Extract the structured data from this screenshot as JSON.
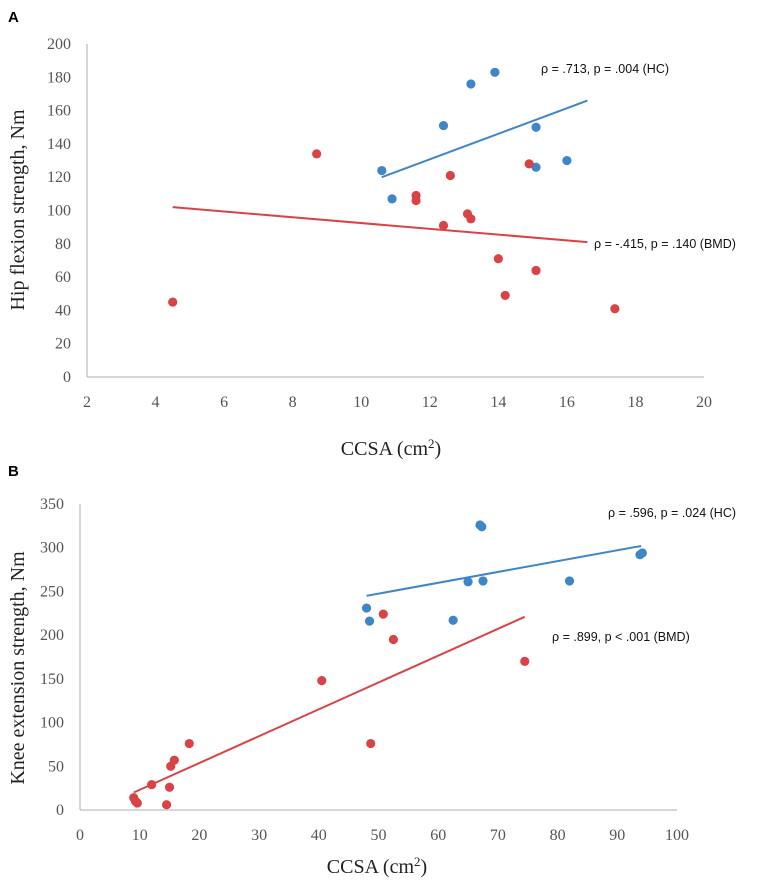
{
  "chart_data": [
    {
      "panel": "A",
      "type": "scatter",
      "xlabel": "CCSA (cm",
      "xlabel_sup": "2",
      "xlabel_end": ")",
      "ylabel": "Hip flexion strength, Nm",
      "xlim": [
        2,
        20
      ],
      "ylim": [
        0,
        200
      ],
      "xticks": [
        "2",
        "4",
        "6",
        "8",
        "10",
        "12",
        "14",
        "16",
        "18",
        "20"
      ],
      "yticks": [
        "0",
        "20",
        "40",
        "60",
        "80",
        "100",
        "120",
        "140",
        "160",
        "180",
        "200"
      ],
      "colors": {
        "HC": "#3e86c7",
        "BMD": "#d94345"
      },
      "series": [
        {
          "name": "HC",
          "color": "#3e86c7",
          "points": [
            [
              10.6,
              124
            ],
            [
              10.9,
              107
            ],
            [
              12.4,
              151
            ],
            [
              13.2,
              176
            ],
            [
              13.9,
              183
            ],
            [
              15.1,
              150
            ],
            [
              15.1,
              126
            ],
            [
              16.0,
              130
            ]
          ],
          "trendline": [
            [
              10.6,
              120
            ],
            [
              16.6,
              166
            ]
          ],
          "annotation": "ρ = .713, p = .004 (HC)"
        },
        {
          "name": "BMD",
          "color": "#d94345",
          "points": [
            [
              4.5,
              45
            ],
            [
              8.7,
              134
            ],
            [
              11.6,
              109
            ],
            [
              11.6,
              106
            ],
            [
              12.4,
              91
            ],
            [
              12.6,
              121
            ],
            [
              13.1,
              98
            ],
            [
              13.2,
              95
            ],
            [
              14.0,
              71
            ],
            [
              14.2,
              49
            ],
            [
              14.9,
              128
            ],
            [
              15.1,
              64
            ],
            [
              17.4,
              41
            ]
          ],
          "trendline": [
            [
              4.5,
              102
            ],
            [
              16.6,
              81
            ]
          ],
          "annotation": "ρ = -.415, p = .140 (BMD)"
        }
      ]
    },
    {
      "panel": "B",
      "type": "scatter",
      "xlabel": "CCSA (cm",
      "xlabel_sup": "2",
      "xlabel_end": ")",
      "ylabel": "Knee extension strength, Nm",
      "xlim": [
        0,
        100
      ],
      "ylim": [
        0,
        350
      ],
      "xticks": [
        "0",
        "10",
        "20",
        "30",
        "40",
        "50",
        "60",
        "70",
        "80",
        "90",
        "100"
      ],
      "yticks": [
        "0",
        "50",
        "100",
        "150",
        "200",
        "250",
        "300",
        "350"
      ],
      "colors": {
        "HC": "#3e86c7",
        "BMD": "#d94345"
      },
      "series": [
        {
          "name": "HC",
          "color": "#3e86c7",
          "points": [
            [
              48,
              231
            ],
            [
              48.5,
              216
            ],
            [
              62.5,
              217
            ],
            [
              65,
              261
            ],
            [
              67,
              326
            ],
            [
              67.3,
              324
            ],
            [
              67.5,
              262
            ],
            [
              82,
              262
            ],
            [
              93.8,
              292
            ],
            [
              94.2,
              294
            ]
          ],
          "trendline": [
            [
              48,
              245
            ],
            [
              94,
              302
            ]
          ],
          "annotation": "ρ = .596, p = .024 (HC)"
        },
        {
          "name": "BMD",
          "color": "#d94345",
          "points": [
            [
              9,
              14
            ],
            [
              9.3,
              10
            ],
            [
              9.6,
              8
            ],
            [
              12,
              29
            ],
            [
              14.5,
              6
            ],
            [
              15,
              26
            ],
            [
              15.2,
              50
            ],
            [
              15.8,
              57
            ],
            [
              18.3,
              76
            ],
            [
              40.5,
              148
            ],
            [
              48.7,
              76
            ],
            [
              50.8,
              224
            ],
            [
              52.5,
              195
            ],
            [
              74.5,
              170
            ]
          ],
          "trendline": [
            [
              9,
              20
            ],
            [
              74.5,
              221
            ]
          ],
          "annotation": "ρ = .899, p < .001 (BMD)"
        }
      ]
    }
  ]
}
